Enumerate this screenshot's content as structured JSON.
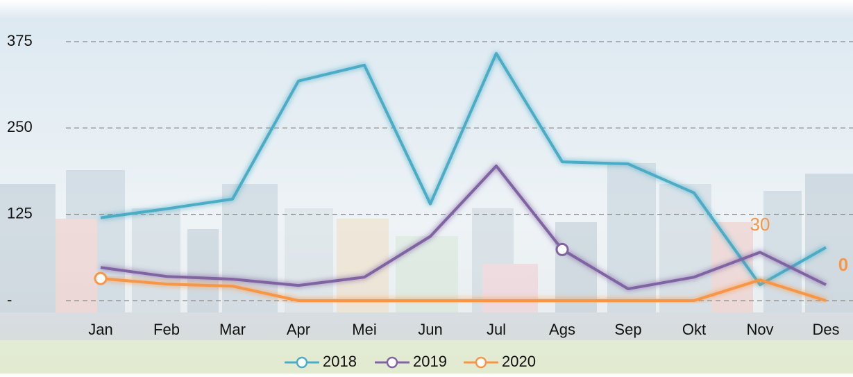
{
  "chart_data": {
    "type": "line",
    "categories": [
      "Jan",
      "Feb",
      "Mar",
      "Apr",
      "Mei",
      "Jun",
      "Jul",
      "Ags",
      "Sep",
      "Okt",
      "Nov",
      "Des"
    ],
    "series": [
      {
        "name": "2018",
        "color": "#4bacc6",
        "values": [
          120,
          133,
          147,
          318,
          341,
          140,
          358,
          201,
          198,
          156,
          23,
          77
        ]
      },
      {
        "name": "2019",
        "color": "#8064a2",
        "values": [
          48,
          35,
          31,
          22,
          34,
          93,
          195,
          74,
          17,
          34,
          70,
          23
        ],
        "markers": [
          7
        ]
      },
      {
        "name": "2020",
        "color": "#f79646",
        "values": [
          32,
          24,
          21,
          0,
          0,
          0,
          0,
          0,
          0,
          0,
          30,
          0
        ],
        "markers": [
          0
        ],
        "labeled_points": [
          10,
          11
        ]
      }
    ],
    "ylim": [
      0,
      375
    ],
    "yticks": [
      {
        "value": 0,
        "label": "-"
      },
      125,
      250,
      375
    ],
    "grid": true,
    "legend": "bottom"
  }
}
